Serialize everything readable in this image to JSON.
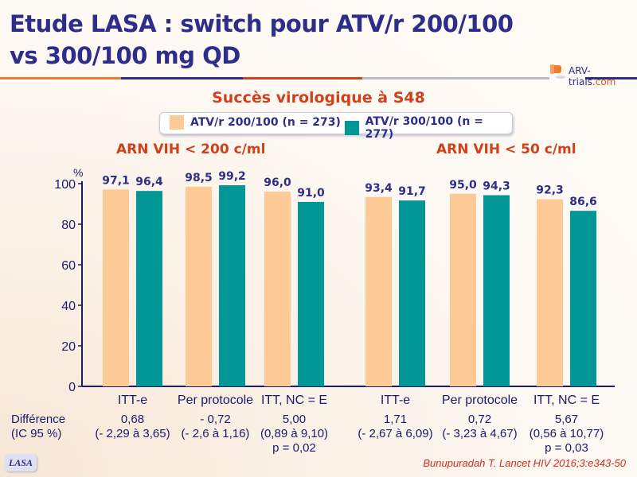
{
  "slide": {
    "title_line1": "Etude LASA : switch pour ATV/r 200/100",
    "title_line2": "vs 300/100 mg QD",
    "logo": {
      "part1": "ARV-trials",
      "part2": ".com"
    },
    "badge": "LASA",
    "citation": "Bunupuradah T. Lancet HIV 2016;3:e343-50"
  },
  "colors": {
    "title": "#2e2e8a",
    "accent_red": "#d2401a",
    "series_200": "#fdc995",
    "series_300": "#009796",
    "axis": "#1a1a6e"
  },
  "differences": {
    "label_line1": "Différence",
    "label_line2": "(IC 95 %)",
    "entries": [
      {
        "value": "0,68",
        "ci": "(- 2,29 à 3,65)",
        "p": ""
      },
      {
        "value": "- 0,72",
        "ci": "(- 2,6 à 1,16)",
        "p": ""
      },
      {
        "value": "5,00",
        "ci": "(0,89 à 9,10)",
        "p": "p = 0,02"
      },
      {
        "value": "1,71",
        "ci": "(- 2,67 à 6,09)",
        "p": ""
      },
      {
        "value": "0,72",
        "ci": "(- 3,23 à 4,67)",
        "p": ""
      },
      {
        "value": "5,67",
        "ci": "(0,56 à 10,77)",
        "p": "p = 0,03"
      }
    ]
  },
  "chart_data": {
    "type": "bar",
    "title": "Succès virologique à S48",
    "ylabel": "%",
    "ylim": [
      0,
      100
    ],
    "yticks": [
      0,
      20,
      40,
      60,
      80,
      100
    ],
    "grid": false,
    "legend_position": "top-center",
    "groups": [
      {
        "title": "ARN VIH < 200 c/ml",
        "categories": [
          "ITT-e",
          "Per protocole",
          "ITT, NC = E"
        ]
      },
      {
        "title": "ARN VIH < 50 c/ml",
        "categories": [
          "ITT-e",
          "Per protocole",
          "ITT, NC = E"
        ]
      }
    ],
    "categories": [
      "ITT-e",
      "Per protocole",
      "ITT, NC = E",
      "ITT-e",
      "Per protocole",
      "ITT, NC = E"
    ],
    "series": [
      {
        "name": "ATV/r 200/100 (n = 273)",
        "values": [
          97.1,
          98.5,
          96.0,
          93.4,
          95.0,
          92.3
        ],
        "labels": [
          "97,1",
          "98,5",
          "96,0",
          "93,4",
          "95,0",
          "92,3"
        ]
      },
      {
        "name": "ATV/r 300/100 (n = 277)",
        "values": [
          96.4,
          99.2,
          91.0,
          91.7,
          94.3,
          86.6
        ],
        "labels": [
          "96,4",
          "99,2",
          "91,0",
          "91,7",
          "94,3",
          "86,6"
        ]
      }
    ]
  }
}
